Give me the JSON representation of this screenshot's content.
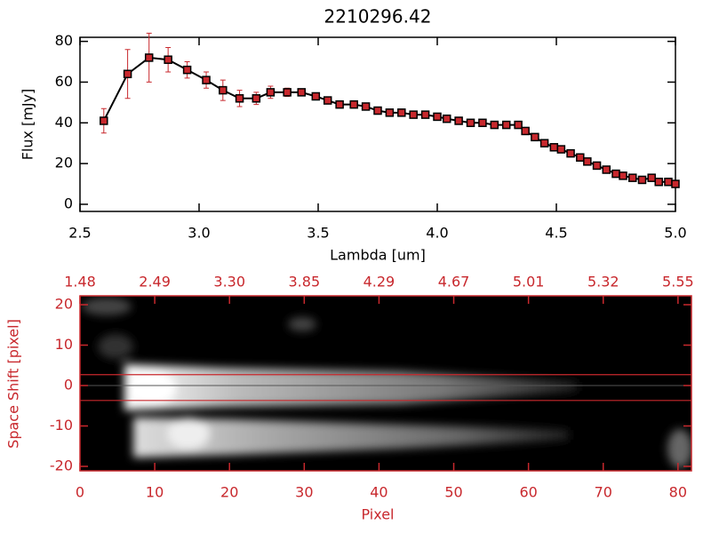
{
  "chart_data": [
    {
      "type": "line",
      "title": "2210296.42",
      "xlabel": "Lambda [um]",
      "ylabel": "Flux [mJy]",
      "xlim": [
        2.5,
        5.0
      ],
      "xticks": [
        2.5,
        {
          "value": 3,
          "label": "3.0"
        },
        3.5,
        {
          "value": 4,
          "label": "4.0"
        },
        4.5,
        {
          "value": 5,
          "label": "5.0"
        }
      ],
      "ylim": [
        -3.5,
        82
      ],
      "yticks": [
        0,
        20,
        40,
        60,
        80
      ],
      "axis_color": "#000000",
      "series": [
        {
          "name": "Flux",
          "color": "#000000",
          "marker_color": "#c8282d",
          "error_color": "#c8282d",
          "x": [
            2.6,
            2.7,
            2.79,
            2.87,
            2.95,
            3.03,
            3.1,
            3.17,
            3.24,
            3.3,
            3.37,
            3.43,
            3.49,
            3.54,
            3.59,
            3.65,
            3.7,
            3.75,
            3.8,
            3.85,
            3.9,
            3.95,
            4.0,
            4.04,
            4.09,
            4.14,
            4.19,
            4.24,
            4.29,
            4.34,
            4.37,
            4.41,
            4.45,
            4.49,
            4.52,
            4.56,
            4.6,
            4.63,
            4.67,
            4.71,
            4.75,
            4.78,
            4.82,
            4.86,
            4.9,
            4.93,
            4.97,
            5.0
          ],
          "values": [
            41,
            64,
            72,
            71,
            66,
            61,
            56,
            52,
            52,
            55,
            55,
            55,
            53,
            51,
            49,
            49,
            48,
            46,
            45,
            45,
            44,
            44,
            43,
            42,
            41,
            40,
            40,
            39,
            39,
            39,
            36,
            33,
            30,
            28,
            27,
            25,
            23,
            21,
            19,
            17,
            15,
            14,
            13,
            12,
            13,
            11,
            11,
            10
          ],
          "errors": [
            6,
            12,
            12,
            6,
            4,
            4,
            5,
            4,
            3,
            3,
            2,
            1,
            1,
            1,
            1,
            1,
            1,
            1,
            1,
            1,
            1,
            1,
            1,
            1,
            1,
            1,
            1,
            1,
            1,
            1,
            1,
            1,
            1,
            1,
            1,
            1,
            1,
            1,
            1,
            1,
            1,
            1,
            1,
            1,
            1,
            1,
            1,
            1
          ]
        }
      ]
    },
    {
      "type": "image",
      "xlabel": "Pixel",
      "ylabel": "Space Shift [pixel]",
      "xlim": [
        0,
        81.8
      ],
      "xticks": [
        0,
        10,
        20,
        30,
        40,
        50,
        60,
        70,
        80
      ],
      "x2ticks": [
        {
          "value": 0,
          "label": "1.48"
        },
        {
          "value": 10,
          "label": "2.49"
        },
        {
          "value": 20,
          "label": "3.30"
        },
        {
          "value": 30,
          "label": "3.85"
        },
        {
          "value": 40,
          "label": "4.29"
        },
        {
          "value": 50,
          "label": "4.67"
        },
        {
          "value": 60,
          "label": "5.01"
        },
        {
          "value": 70,
          "label": "5.32"
        },
        {
          "value": 80,
          "label": "5.55"
        }
      ],
      "ylim": [
        -21.1,
        22.2
      ],
      "yticks": [
        -20,
        -10,
        0,
        10,
        20
      ],
      "axis_color": "#c8282d",
      "hlines": [
        2.7,
        -3.7
      ],
      "hline_color": "#c8282d"
    }
  ]
}
